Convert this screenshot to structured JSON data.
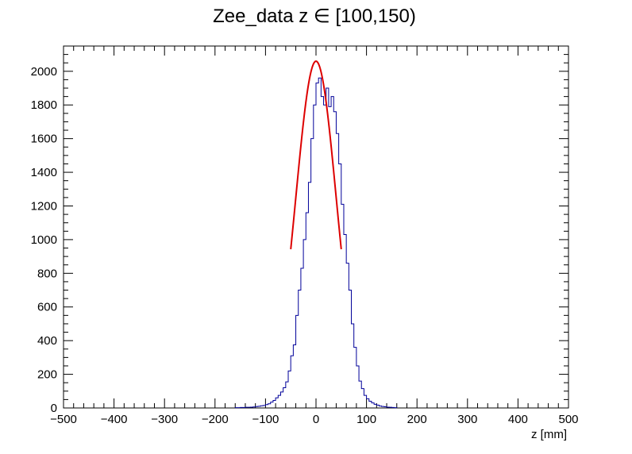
{
  "chart_data": {
    "type": "histogram",
    "title": "Zee_data z  ∈ [100,150)",
    "xlabel": "z [mm]",
    "ylabel": "",
    "xlim": [
      -500,
      500
    ],
    "ylim": [
      0,
      2150
    ],
    "x_ticks": [
      -500,
      -400,
      -300,
      -200,
      -100,
      0,
      100,
      200,
      300,
      400,
      500
    ],
    "x_tick_labels": [
      "−500",
      "−400",
      "−300",
      "−200",
      "−100",
      "0",
      "100",
      "200",
      "300",
      "400",
      "500"
    ],
    "y_ticks": [
      0,
      200,
      400,
      600,
      800,
      1000,
      1200,
      1400,
      1600,
      1800,
      2000
    ],
    "y_tick_labels": [
      "0",
      "200",
      "400",
      "600",
      "800",
      "1000",
      "1200",
      "1400",
      "1600",
      "1800",
      "2000"
    ],
    "grid": false,
    "legend": "none",
    "bin_width": 5,
    "series": [
      {
        "type": "histogram",
        "color": "#000099",
        "bins": [
          [
            -160,
            2
          ],
          [
            -155,
            2
          ],
          [
            -150,
            3
          ],
          [
            -145,
            3
          ],
          [
            -140,
            4
          ],
          [
            -135,
            4
          ],
          [
            -130,
            5
          ],
          [
            -125,
            6
          ],
          [
            -120,
            8
          ],
          [
            -115,
            10
          ],
          [
            -110,
            13
          ],
          [
            -105,
            15
          ],
          [
            -100,
            20
          ],
          [
            -95,
            25
          ],
          [
            -90,
            35
          ],
          [
            -85,
            45
          ],
          [
            -80,
            60
          ],
          [
            -75,
            75
          ],
          [
            -70,
            95
          ],
          [
            -65,
            120
          ],
          [
            -60,
            155
          ],
          [
            -55,
            220
          ],
          [
            -50,
            310
          ],
          [
            -45,
            375
          ],
          [
            -40,
            550
          ],
          [
            -35,
            700
          ],
          [
            -30,
            830
          ],
          [
            -25,
            1000
          ],
          [
            -20,
            1160
          ],
          [
            -15,
            1340
          ],
          [
            -10,
            1600
          ],
          [
            -5,
            1800
          ],
          [
            0,
            1930
          ],
          [
            5,
            1960
          ],
          [
            10,
            1850
          ],
          [
            15,
            1800
          ],
          [
            20,
            1900
          ],
          [
            25,
            1790
          ],
          [
            30,
            1850
          ],
          [
            35,
            1760
          ],
          [
            40,
            1630
          ],
          [
            45,
            1450
          ],
          [
            50,
            1210
          ],
          [
            55,
            1030
          ],
          [
            60,
            860
          ],
          [
            65,
            700
          ],
          [
            70,
            500
          ],
          [
            75,
            360
          ],
          [
            80,
            250
          ],
          [
            85,
            160
          ],
          [
            90,
            115
          ],
          [
            95,
            75
          ],
          [
            100,
            55
          ],
          [
            105,
            40
          ],
          [
            110,
            30
          ],
          [
            115,
            22
          ],
          [
            120,
            17
          ],
          [
            125,
            12
          ],
          [
            130,
            9
          ],
          [
            135,
            7
          ],
          [
            140,
            5
          ],
          [
            145,
            4
          ],
          [
            150,
            3
          ],
          [
            155,
            2
          ]
        ]
      },
      {
        "type": "fit",
        "color": "#dd0000",
        "model": "gaussian",
        "amplitude": 2060,
        "mean": 0,
        "sigma": 40,
        "range": [
          -50,
          50
        ]
      }
    ]
  }
}
